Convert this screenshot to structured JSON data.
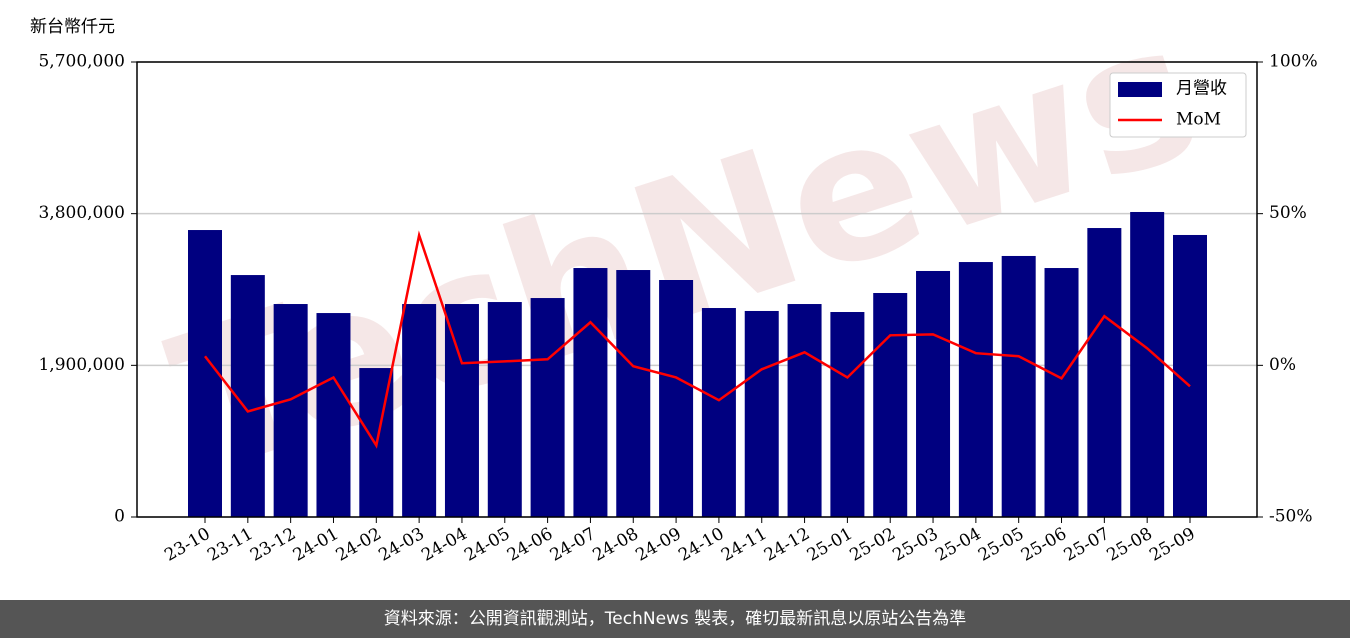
{
  "chart_data": {
    "type": "bar_line",
    "y_unit_label": "新台幣仟元",
    "watermark": "TechNews",
    "footer": "資料來源：公開資訊觀測站，TechNews 製表，確切最新訊息以原站公告為準",
    "categories": [
      "23-10",
      "23-11",
      "23-12",
      "24-01",
      "24-02",
      "24-03",
      "24-04",
      "24-05",
      "24-06",
      "24-07",
      "24-08",
      "24-09",
      "24-10",
      "24-11",
      "24-12",
      "25-01",
      "25-02",
      "25-03",
      "25-04",
      "25-05",
      "25-06",
      "25-07",
      "25-08",
      "25-09"
    ],
    "series": [
      {
        "name": "月營收",
        "color": "#000080",
        "type": "bar",
        "values": [
          3595000,
          3031000,
          2668000,
          2555000,
          1866000,
          2668000,
          2668000,
          2693000,
          2743000,
          3119000,
          3094000,
          2969000,
          2618000,
          2581000,
          2668000,
          2568000,
          2806000,
          3082000,
          3194000,
          3270000,
          3119000,
          3620000,
          3821000,
          3533000
        ]
      },
      {
        "name": "MoM",
        "color": "#ff0000",
        "type": "line",
        "axis": "y2",
        "values": [
          3.0,
          -15.2,
          -11.2,
          -4.0,
          -26.4,
          42.9,
          0.7,
          1.3,
          2.0,
          14.2,
          -0.3,
          -4.0,
          -11.5,
          -1.3,
          4.3,
          -4.0,
          9.9,
          10.2,
          4.0,
          3.0,
          -4.3,
          16.2,
          5.6,
          -6.9
        ]
      }
    ],
    "ylim": [
      0,
      5700000
    ],
    "yticks": [
      0,
      {
        "value": 1900000,
        "label": "1,900,000"
      },
      {
        "value": 3800000,
        "label": "3,800,000"
      },
      {
        "value": 5700000,
        "label": "5,700,000"
      }
    ],
    "y2lim": [
      -50,
      100
    ],
    "y2ticks": [
      {
        "value": -50,
        "label": "-50%"
      },
      {
        "value": 0,
        "label": "0%"
      },
      {
        "value": 50,
        "label": "50%"
      },
      {
        "value": 100,
        "label": "100%"
      }
    ],
    "grid": true,
    "legend": "upper right"
  }
}
